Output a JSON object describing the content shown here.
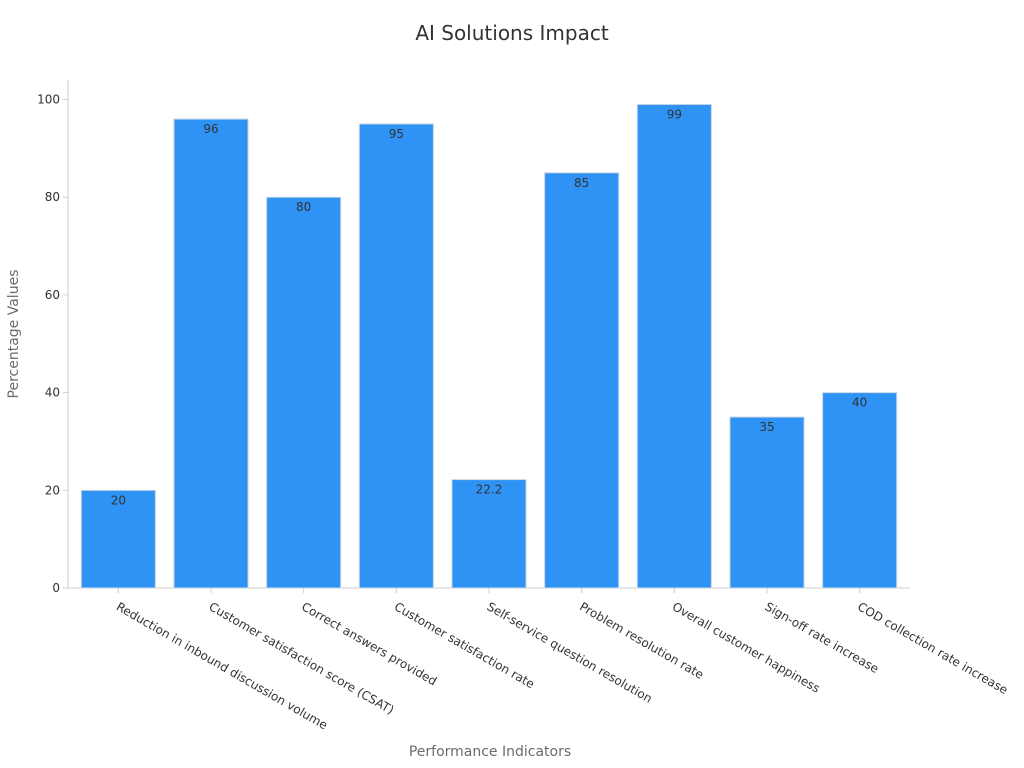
{
  "colors": {
    "bar": "#2e93f5",
    "bar_stroke": "#cfd8e3",
    "axis": "#cccccc",
    "text": "#333333",
    "axis_title": "#6b6b6b"
  },
  "chart_data": {
    "type": "bar",
    "title": "AI Solutions Impact",
    "xlabel": "Performance Indicators",
    "ylabel": "Percentage Values",
    "ylim": [
      0,
      104
    ],
    "yticks": [
      0,
      20,
      40,
      60,
      80,
      100
    ],
    "grid": false,
    "categories": [
      "Reduction in inbound discussion volume",
      "Customer satisfaction score (CSAT)",
      "Correct answers provided",
      "Customer satisfaction rate",
      "Self-service question resolution",
      "Problem resolution rate",
      "Overall customer happiness",
      "Sign-off rate increase",
      "COD collection rate increase"
    ],
    "values": [
      20,
      96,
      80,
      95,
      22.2,
      85,
      99,
      35,
      40
    ],
    "data_labels": [
      "20",
      "96",
      "80",
      "95",
      "22.2",
      "85",
      "99",
      "35",
      "40"
    ]
  }
}
